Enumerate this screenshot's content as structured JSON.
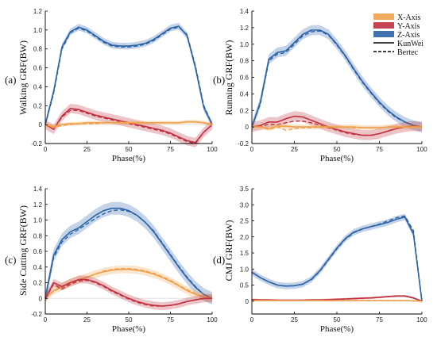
{
  "colors": {
    "x": "#f0a04b",
    "y": "#c0303e",
    "z": "#2b62a8"
  },
  "legend": [
    {
      "label": "X-Axis",
      "kind": "patch",
      "color": "#f0a04b"
    },
    {
      "label": "Y-Axis",
      "kind": "patch",
      "color": "#c0303e"
    },
    {
      "label": "Z-Axis",
      "kind": "patch",
      "color": "#2b62a8"
    },
    {
      "label": "KunWei",
      "kind": "solid"
    },
    {
      "label": "Bertec",
      "kind": "dashed"
    }
  ],
  "chart_data": [
    {
      "type": "line",
      "panel_label": "(a)",
      "ylabel": "Walking GRF(BW)",
      "xlabel": "Phase(%)",
      "xlim": [
        0,
        100
      ],
      "ylim": [
        -0.2,
        1.2
      ],
      "xticks": [
        "0",
        "25",
        "50",
        "75",
        "100"
      ],
      "yticks": [
        "-0.2",
        "0",
        "0.2",
        "0.4",
        "0.6",
        "0.8",
        "1.0",
        "1.2"
      ],
      "x": [
        0,
        5,
        10,
        15,
        20,
        25,
        30,
        35,
        40,
        45,
        50,
        55,
        60,
        65,
        70,
        75,
        80,
        85,
        90,
        95,
        100
      ],
      "series": [
        {
          "name": "Z-Axis",
          "color": "#2b62a8",
          "solid": [
            0.0,
            0.35,
            0.82,
            0.98,
            1.03,
            1.0,
            0.94,
            0.88,
            0.84,
            0.83,
            0.83,
            0.84,
            0.86,
            0.9,
            0.96,
            1.02,
            1.04,
            0.94,
            0.6,
            0.18,
            0.0
          ],
          "dashed": [
            0.0,
            0.33,
            0.8,
            0.97,
            1.02,
            0.99,
            0.93,
            0.87,
            0.83,
            0.82,
            0.82,
            0.83,
            0.85,
            0.89,
            0.95,
            1.01,
            1.03,
            0.95,
            0.62,
            0.2,
            0.0
          ],
          "band": 0.035
        },
        {
          "name": "Y-Axis",
          "color": "#c0303e",
          "solid": [
            0.0,
            -0.05,
            0.09,
            0.17,
            0.16,
            0.13,
            0.1,
            0.08,
            0.06,
            0.04,
            0.02,
            0.0,
            -0.02,
            -0.04,
            -0.06,
            -0.09,
            -0.13,
            -0.17,
            -0.19,
            -0.08,
            0.0
          ],
          "dashed": [
            0.0,
            -0.05,
            0.08,
            0.15,
            0.15,
            0.12,
            0.09,
            0.07,
            0.05,
            0.03,
            0.01,
            -0.01,
            -0.03,
            -0.05,
            -0.07,
            -0.1,
            -0.14,
            -0.18,
            -0.2,
            -0.08,
            0.0
          ],
          "band": 0.05
        },
        {
          "name": "X-Axis",
          "color": "#f0a04b",
          "solid": [
            0.0,
            -0.02,
            0.0,
            0.01,
            0.01,
            0.02,
            0.02,
            0.02,
            0.02,
            0.02,
            0.02,
            0.02,
            0.02,
            0.02,
            0.02,
            0.02,
            0.02,
            0.03,
            0.03,
            0.02,
            0.0
          ],
          "dashed": [
            0.0,
            -0.03,
            -0.01,
            0.0,
            0.01,
            0.01,
            0.01,
            0.02,
            0.02,
            0.02,
            0.02,
            0.02,
            0.02,
            0.02,
            0.02,
            0.02,
            0.02,
            0.03,
            0.03,
            0.02,
            0.0
          ],
          "band": 0.02
        }
      ]
    },
    {
      "type": "line",
      "panel_label": "(b)",
      "ylabel": "Running GRF(BW)",
      "xlabel": "Phase(%)",
      "xlim": [
        0,
        100
      ],
      "ylim": [
        -0.2,
        1.4
      ],
      "xticks": [
        "0",
        "25",
        "50",
        "75",
        "100"
      ],
      "yticks": [
        "-0.2",
        "0",
        "0.2",
        "0.4",
        "0.6",
        "0.8",
        "1.0",
        "1.2",
        "1.4"
      ],
      "x": [
        0,
        5,
        10,
        15,
        20,
        25,
        30,
        35,
        40,
        45,
        50,
        55,
        60,
        65,
        70,
        75,
        80,
        85,
        90,
        95,
        100
      ],
      "series": [
        {
          "name": "Z-Axis",
          "color": "#2b62a8",
          "solid": [
            0.0,
            0.3,
            0.82,
            0.9,
            0.92,
            1.02,
            1.12,
            1.17,
            1.17,
            1.12,
            1.0,
            0.86,
            0.7,
            0.55,
            0.42,
            0.3,
            0.2,
            0.12,
            0.06,
            0.02,
            0.0
          ],
          "dashed": [
            0.0,
            0.28,
            0.8,
            0.88,
            0.9,
            1.0,
            1.1,
            1.15,
            1.16,
            1.11,
            0.99,
            0.85,
            0.69,
            0.54,
            0.41,
            0.29,
            0.19,
            0.11,
            0.06,
            0.02,
            0.0
          ],
          "band": 0.06
        },
        {
          "name": "Y-Axis",
          "color": "#c0303e",
          "solid": [
            0.0,
            0.02,
            0.06,
            0.06,
            0.1,
            0.13,
            0.12,
            0.08,
            0.04,
            0.0,
            -0.03,
            -0.06,
            -0.08,
            -0.1,
            -0.1,
            -0.08,
            -0.05,
            -0.02,
            0.0,
            0.01,
            0.0
          ],
          "dashed": [
            0.0,
            0.01,
            0.03,
            0.03,
            0.05,
            0.07,
            0.07,
            0.05,
            0.02,
            -0.01,
            -0.04,
            -0.07,
            -0.09,
            -0.1,
            -0.1,
            -0.08,
            -0.05,
            -0.02,
            0.0,
            0.01,
            0.0
          ],
          "band": 0.06
        },
        {
          "name": "X-Axis",
          "color": "#f0a04b",
          "solid": [
            0.0,
            0.0,
            -0.02,
            0.01,
            0.01,
            0.0,
            0.0,
            0.0,
            0.0,
            0.0,
            0.0,
            0.0,
            0.0,
            -0.01,
            -0.01,
            -0.01,
            0.0,
            0.0,
            0.0,
            0.0,
            0.0
          ],
          "dashed": [
            0.0,
            0.0,
            -0.03,
            0.0,
            -0.04,
            -0.02,
            -0.01,
            -0.01,
            0.0,
            0.0,
            0.0,
            0.0,
            -0.01,
            -0.01,
            -0.01,
            -0.01,
            0.0,
            0.0,
            0.0,
            0.0,
            0.0
          ],
          "band": 0.03
        }
      ]
    },
    {
      "type": "line",
      "panel_label": "(c)",
      "ylabel": "Side Cutting GRF(BW)",
      "xlabel": "Phase(%)",
      "xlim": [
        0,
        100
      ],
      "ylim": [
        -0.2,
        1.4
      ],
      "xticks": [
        "0",
        "25",
        "50",
        "75",
        "100"
      ],
      "yticks": [
        "-0.2",
        "0",
        "0.2",
        "0.4",
        "0.6",
        "0.8",
        "1.0",
        "1.2",
        "1.4"
      ],
      "x": [
        0,
        5,
        10,
        15,
        20,
        25,
        30,
        35,
        40,
        45,
        50,
        55,
        60,
        65,
        70,
        75,
        80,
        85,
        90,
        95,
        100
      ],
      "series": [
        {
          "name": "Z-Axis",
          "color": "#2b62a8",
          "solid": [
            0.0,
            0.55,
            0.75,
            0.85,
            0.9,
            0.98,
            1.06,
            1.12,
            1.15,
            1.15,
            1.12,
            1.06,
            0.97,
            0.85,
            0.7,
            0.55,
            0.4,
            0.26,
            0.14,
            0.05,
            0.0
          ],
          "dashed": [
            0.0,
            0.52,
            0.72,
            0.82,
            0.88,
            0.95,
            1.02,
            1.08,
            1.12,
            1.13,
            1.11,
            1.06,
            0.97,
            0.86,
            0.71,
            0.56,
            0.41,
            0.27,
            0.15,
            0.05,
            0.0
          ],
          "band": 0.08
        },
        {
          "name": "X-Axis",
          "color": "#f0a04b",
          "solid": [
            0.0,
            0.1,
            0.15,
            0.2,
            0.24,
            0.27,
            0.31,
            0.34,
            0.36,
            0.37,
            0.37,
            0.36,
            0.34,
            0.31,
            0.27,
            0.22,
            0.16,
            0.1,
            0.05,
            0.02,
            0.0
          ],
          "dashed": [
            0.0,
            0.09,
            0.14,
            0.19,
            0.23,
            0.27,
            0.31,
            0.35,
            0.37,
            0.38,
            0.38,
            0.37,
            0.35,
            0.32,
            0.28,
            0.23,
            0.17,
            0.11,
            0.06,
            0.02,
            0.0
          ],
          "band": 0.05
        },
        {
          "name": "Y-Axis",
          "color": "#c0303e",
          "solid": [
            0.0,
            0.2,
            0.15,
            0.2,
            0.24,
            0.24,
            0.21,
            0.16,
            0.1,
            0.05,
            0.0,
            -0.04,
            -0.07,
            -0.09,
            -0.1,
            -0.09,
            -0.07,
            -0.04,
            -0.02,
            0.0,
            0.0
          ],
          "dashed": [
            0.0,
            0.18,
            0.12,
            0.18,
            0.22,
            0.23,
            0.2,
            0.15,
            0.09,
            0.04,
            -0.01,
            -0.05,
            -0.08,
            -0.1,
            -0.1,
            -0.09,
            -0.07,
            -0.04,
            -0.02,
            0.0,
            0.0
          ],
          "band": 0.05
        }
      ]
    },
    {
      "type": "line",
      "panel_label": "(d)",
      "ylabel": "CMJ GRF(BW)",
      "xlabel": "Phase(%)",
      "xlim": [
        0,
        100
      ],
      "ylim": [
        -0.4,
        3.5
      ],
      "xticks": [
        "0",
        "25",
        "50",
        "75",
        "100"
      ],
      "yticks": [
        "0",
        "0.5",
        "1.0",
        "1.5",
        "2.0",
        "2.5",
        "3.0",
        "3.5"
      ],
      "x": [
        0,
        5,
        10,
        15,
        20,
        25,
        30,
        35,
        40,
        45,
        50,
        55,
        60,
        65,
        70,
        75,
        80,
        85,
        90,
        95,
        100
      ],
      "series": [
        {
          "name": "Z-Axis",
          "color": "#2b62a8",
          "solid": [
            0.9,
            0.73,
            0.6,
            0.5,
            0.47,
            0.48,
            0.53,
            0.68,
            0.95,
            1.3,
            1.65,
            1.95,
            2.15,
            2.25,
            2.32,
            2.38,
            2.45,
            2.55,
            2.62,
            2.1,
            0.0
          ],
          "dashed": [
            0.9,
            0.73,
            0.6,
            0.5,
            0.47,
            0.48,
            0.53,
            0.67,
            0.93,
            1.28,
            1.63,
            1.93,
            2.13,
            2.24,
            2.32,
            2.4,
            2.5,
            2.6,
            2.65,
            2.2,
            0.0
          ],
          "band": 0.1
        },
        {
          "name": "Y-Axis",
          "color": "#c0303e",
          "solid": [
            0.05,
            0.04,
            0.04,
            0.03,
            0.03,
            0.03,
            0.03,
            0.04,
            0.04,
            0.05,
            0.06,
            0.07,
            0.08,
            0.09,
            0.1,
            0.12,
            0.14,
            0.16,
            0.16,
            0.1,
            0.0
          ],
          "dashed": [
            0.05,
            0.04,
            0.04,
            0.03,
            0.03,
            0.03,
            0.03,
            0.04,
            0.04,
            0.05,
            0.06,
            0.07,
            0.08,
            0.09,
            0.1,
            0.12,
            0.14,
            0.16,
            0.16,
            0.1,
            0.0
          ],
          "band": 0.03
        },
        {
          "name": "X-Axis",
          "color": "#f0a04b",
          "solid": [
            0.02,
            0.02,
            0.02,
            0.02,
            0.02,
            0.02,
            0.02,
            0.02,
            0.02,
            0.02,
            0.02,
            0.02,
            0.02,
            0.02,
            0.02,
            0.02,
            0.02,
            0.02,
            0.02,
            0.01,
            0.0
          ],
          "dashed": [
            0.02,
            0.02,
            0.02,
            0.02,
            0.02,
            0.02,
            0.02,
            0.02,
            0.02,
            0.02,
            0.02,
            0.02,
            0.02,
            0.02,
            0.02,
            0.02,
            0.02,
            0.02,
            0.02,
            0.01,
            0.0
          ],
          "band": 0.01
        }
      ]
    }
  ]
}
